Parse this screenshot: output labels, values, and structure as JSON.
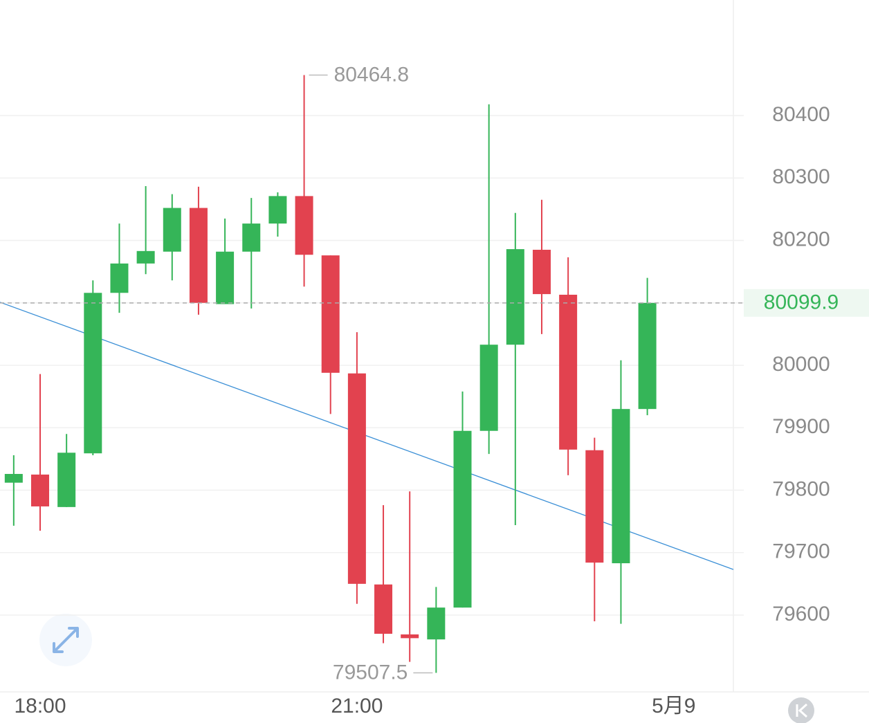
{
  "chart_data": {
    "type": "candlestick",
    "up_color": "#35b558",
    "down_color": "#e2424f",
    "open": [
      79812,
      79825,
      79773,
      79859,
      80116,
      80163,
      80182,
      80252,
      80098,
      80182,
      80227,
      80271,
      80176,
      79987,
      79649,
      79569,
      79561,
      79612,
      79895,
      80033,
      80185,
      80113,
      79864,
      79683,
      79930
    ],
    "high": [
      79856,
      79986,
      79890,
      80136,
      80227,
      80287,
      80274,
      80286,
      80235,
      80268,
      80277,
      80464.8,
      80176,
      80053,
      79776,
      79798,
      79645,
      79958,
      80418,
      80244,
      80265,
      80173,
      79884,
      80008,
      80140
    ],
    "low": [
      79743,
      79735,
      79773,
      79856,
      80084,
      80146,
      80136,
      80081,
      80098,
      80091,
      80206,
      80126,
      79922,
      79618,
      79555,
      79525,
      79507.5,
      79612,
      79858,
      79744,
      80050,
      79824,
      79590,
      79586,
      79920
    ],
    "close": [
      79826,
      79774,
      79860,
      80116,
      80163,
      80183,
      80252,
      80100,
      80182,
      80227,
      80271,
      80177,
      79988,
      79650,
      79570,
      79563,
      79612,
      79895,
      80033,
      80186,
      80114,
      79865,
      79684,
      79930,
      80099.9
    ],
    "xlim": [
      -0.52,
      27.26
    ],
    "xticks": [
      {
        "value": 1,
        "label": "18:00"
      },
      {
        "value": 13,
        "label": "21:00"
      },
      {
        "value": 25,
        "label": "5月9"
      }
    ],
    "ylim": [
      79477,
      80585
    ],
    "yticks": [
      79600,
      79700,
      79800,
      79900,
      80000,
      80100,
      80200,
      80300,
      80400
    ],
    "grid": true,
    "trendline": {
      "color": "#3a8fd6",
      "x": [
        -0.52,
        27.26
      ],
      "y": [
        80101,
        79673
      ]
    }
  }
}
